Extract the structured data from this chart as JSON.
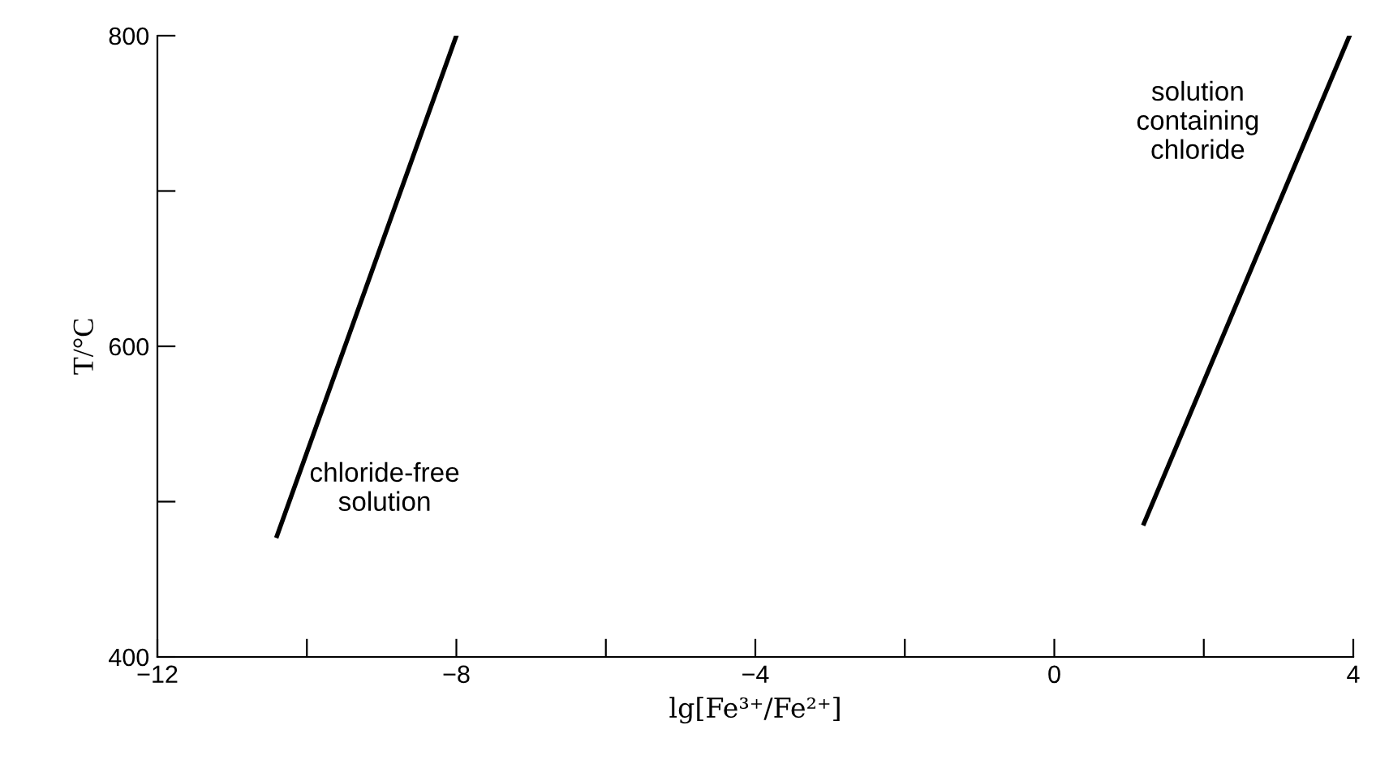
{
  "chart_data": {
    "type": "line",
    "xlabel": "lg[Fe³⁺/Fe²⁺]",
    "ylabel": "T/°C",
    "series": [
      {
        "x": [
          -10.4,
          -8.0
        ],
        "values": [
          478,
          800
        ],
        "color": "#000000"
      },
      {
        "x": [
          1.2,
          3.95
        ],
        "values": [
          486,
          800
        ],
        "color": "#000000"
      }
    ],
    "xlim": [
      -12,
      4
    ],
    "ylim": [
      400,
      800
    ],
    "xticks": [
      {
        "value": -12,
        "label": "−12"
      },
      {
        "value": -10,
        "label": null
      },
      {
        "value": -8,
        "label": "−8"
      },
      {
        "value": -6,
        "label": null
      },
      {
        "value": -4,
        "label": "−4"
      },
      {
        "value": -2,
        "label": null
      },
      0,
      {
        "value": 2,
        "label": null
      },
      4
    ],
    "yticks": [
      400,
      {
        "value": 500,
        "label": null
      },
      600,
      {
        "value": 700,
        "label": null
      },
      800
    ],
    "annotations": [
      "chloride-free\nsolution",
      "solution\ncontaining\nchloride"
    ],
    "grid": false,
    "marker": "none",
    "line_style": "solid"
  }
}
